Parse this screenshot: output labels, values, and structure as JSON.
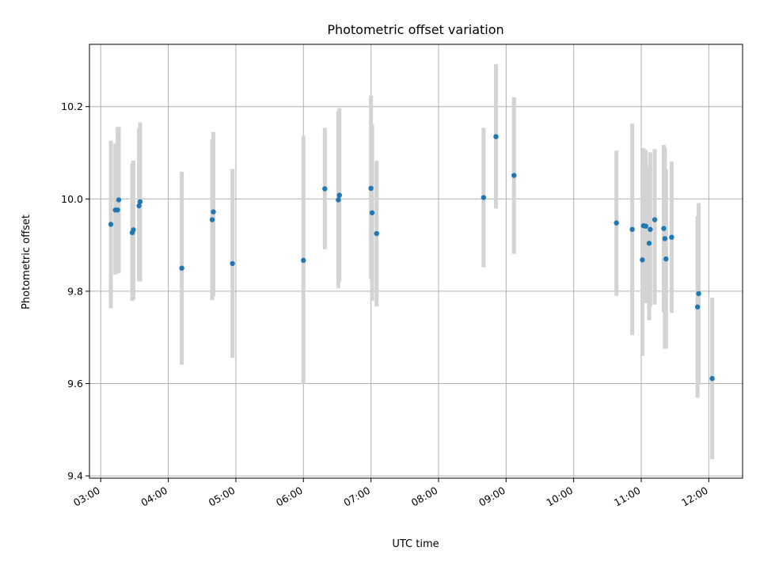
{
  "chart_data": {
    "type": "scatter",
    "title": "Photometric offset variation",
    "xlabel": "UTC time",
    "ylabel": "Photometric offset",
    "x_unit": "UTC hours",
    "xlim": [
      "02:50",
      "12:30"
    ],
    "ylim": [
      9.395,
      10.335
    ],
    "x_ticks": [
      "03:00",
      "04:00",
      "05:00",
      "06:00",
      "07:00",
      "08:00",
      "09:00",
      "10:00",
      "11:00",
      "12:00"
    ],
    "y_ticks": [
      "9.4",
      "9.6",
      "9.8",
      "10.0",
      "10.2"
    ],
    "grid": true,
    "legend": "none",
    "colors": {
      "points": "#1f77b4",
      "errorbars": "#d3d3d3",
      "grid": "#b0b0b0"
    },
    "points": [
      {
        "x": "03:09",
        "y": 9.945,
        "ylow": 9.763,
        "yhigh": 10.126
      },
      {
        "x": "03:13",
        "y": 9.976,
        "ylow": 9.836,
        "yhigh": 10.12
      },
      {
        "x": "03:15",
        "y": 9.976,
        "ylow": 9.839,
        "yhigh": 10.156
      },
      {
        "x": "03:16",
        "y": 9.998,
        "ylow": 9.84,
        "yhigh": 10.156
      },
      {
        "x": "03:28",
        "y": 9.927,
        "ylow": 9.779,
        "yhigh": 10.077
      },
      {
        "x": "03:29",
        "y": 9.933,
        "ylow": 9.782,
        "yhigh": 10.083
      },
      {
        "x": "03:34",
        "y": 9.985,
        "ylow": 9.822,
        "yhigh": 10.153
      },
      {
        "x": "03:35",
        "y": 9.994,
        "ylow": 9.821,
        "yhigh": 10.166
      },
      {
        "x": "04:12",
        "y": 9.85,
        "ylow": 9.641,
        "yhigh": 10.059
      },
      {
        "x": "04:39",
        "y": 9.955,
        "ylow": 9.781,
        "yhigh": 10.128
      },
      {
        "x": "04:40",
        "y": 9.972,
        "ylow": 9.789,
        "yhigh": 10.145
      },
      {
        "x": "04:57",
        "y": 9.86,
        "ylow": 9.656,
        "yhigh": 10.065
      },
      {
        "x": "06:00",
        "y": 9.867,
        "ylow": 9.599,
        "yhigh": 10.137
      },
      {
        "x": "06:19",
        "y": 10.022,
        "ylow": 9.891,
        "yhigh": 10.154
      },
      {
        "x": "06:31",
        "y": 9.998,
        "ylow": 9.807,
        "yhigh": 10.19
      },
      {
        "x": "06:32",
        "y": 10.008,
        "ylow": 9.82,
        "yhigh": 10.197
      },
      {
        "x": "07:00",
        "y": 10.023,
        "ylow": 9.826,
        "yhigh": 10.224
      },
      {
        "x": "07:01",
        "y": 9.97,
        "ylow": 9.779,
        "yhigh": 10.162
      },
      {
        "x": "07:05",
        "y": 9.925,
        "ylow": 9.767,
        "yhigh": 10.083
      },
      {
        "x": "08:40",
        "y": 10.003,
        "ylow": 9.852,
        "yhigh": 10.154
      },
      {
        "x": "08:51",
        "y": 10.135,
        "ylow": 9.979,
        "yhigh": 10.292
      },
      {
        "x": "09:07",
        "y": 10.051,
        "ylow": 9.881,
        "yhigh": 10.22
      },
      {
        "x": "10:38",
        "y": 9.948,
        "ylow": 9.79,
        "yhigh": 10.105
      },
      {
        "x": "10:52",
        "y": 9.934,
        "ylow": 9.705,
        "yhigh": 10.163
      },
      {
        "x": "11:01",
        "y": 9.868,
        "ylow": 9.66,
        "yhigh": 10.077
      },
      {
        "x": "11:02",
        "y": 9.942,
        "ylow": 9.777,
        "yhigh": 10.11
      },
      {
        "x": "11:04",
        "y": 9.941,
        "ylow": 9.774,
        "yhigh": 10.106
      },
      {
        "x": "11:07",
        "y": 9.904,
        "ylow": 9.737,
        "yhigh": 10.071
      },
      {
        "x": "11:08",
        "y": 9.934,
        "ylow": 9.767,
        "yhigh": 10.101
      },
      {
        "x": "11:12",
        "y": 9.955,
        "ylow": 9.771,
        "yhigh": 10.108
      },
      {
        "x": "11:20",
        "y": 9.936,
        "ylow": 9.755,
        "yhigh": 10.117
      },
      {
        "x": "11:21",
        "y": 9.914,
        "ylow": 9.675,
        "yhigh": 10.112
      },
      {
        "x": "11:22",
        "y": 9.87,
        "ylow": 9.676,
        "yhigh": 10.064
      },
      {
        "x": "11:27",
        "y": 9.917,
        "ylow": 9.753,
        "yhigh": 10.081
      },
      {
        "x": "11:50",
        "y": 9.766,
        "ylow": 9.569,
        "yhigh": 9.963
      },
      {
        "x": "11:51",
        "y": 9.795,
        "ylow": 9.598,
        "yhigh": 9.991
      },
      {
        "x": "12:03",
        "y": 9.611,
        "ylow": 9.436,
        "yhigh": 9.786
      }
    ]
  }
}
